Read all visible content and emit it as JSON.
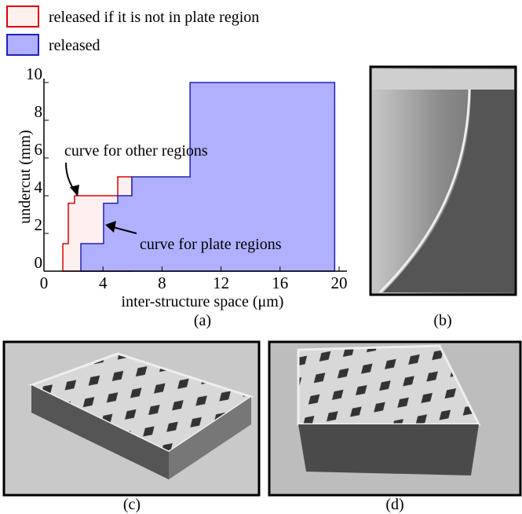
{
  "chart_data": {
    "type": "area",
    "x_label": "inter-structure space (μm)",
    "y_label": "undercut (mm)",
    "xlim": [
      0,
      20
    ],
    "ylim": [
      0,
      10
    ],
    "xticks": [
      0,
      4,
      8,
      12,
      16,
      20
    ],
    "yticks": [
      0,
      2,
      4,
      6,
      8,
      10
    ],
    "series": [
      {
        "name": "released if it is not in plate region",
        "color": "#e00000",
        "x": [
          1.28,
          1.28,
          1.65,
          1.65,
          2.07,
          2.07,
          5.0,
          5.0,
          5.96
        ],
        "values": [
          0,
          1.46,
          1.46,
          3.6,
          3.6,
          4.0,
          4.0,
          5.0,
          5.0
        ]
      },
      {
        "name": "released",
        "color": "#b0b0ff",
        "x": [
          2.5,
          2.5,
          4.04,
          4.04,
          5.0,
          5.0,
          5.96,
          5.96,
          9.9,
          9.9,
          19.7,
          19.7
        ],
        "values": [
          0,
          1.46,
          1.46,
          3.6,
          3.6,
          4.0,
          4.0,
          5.0,
          5.0,
          10,
          10,
          0
        ]
      }
    ],
    "annotations": [
      "curve for other regions",
      "curve for plate regions"
    ]
  },
  "captions": [
    "(a)",
    "(b)",
    "(c)",
    "(d)"
  ]
}
